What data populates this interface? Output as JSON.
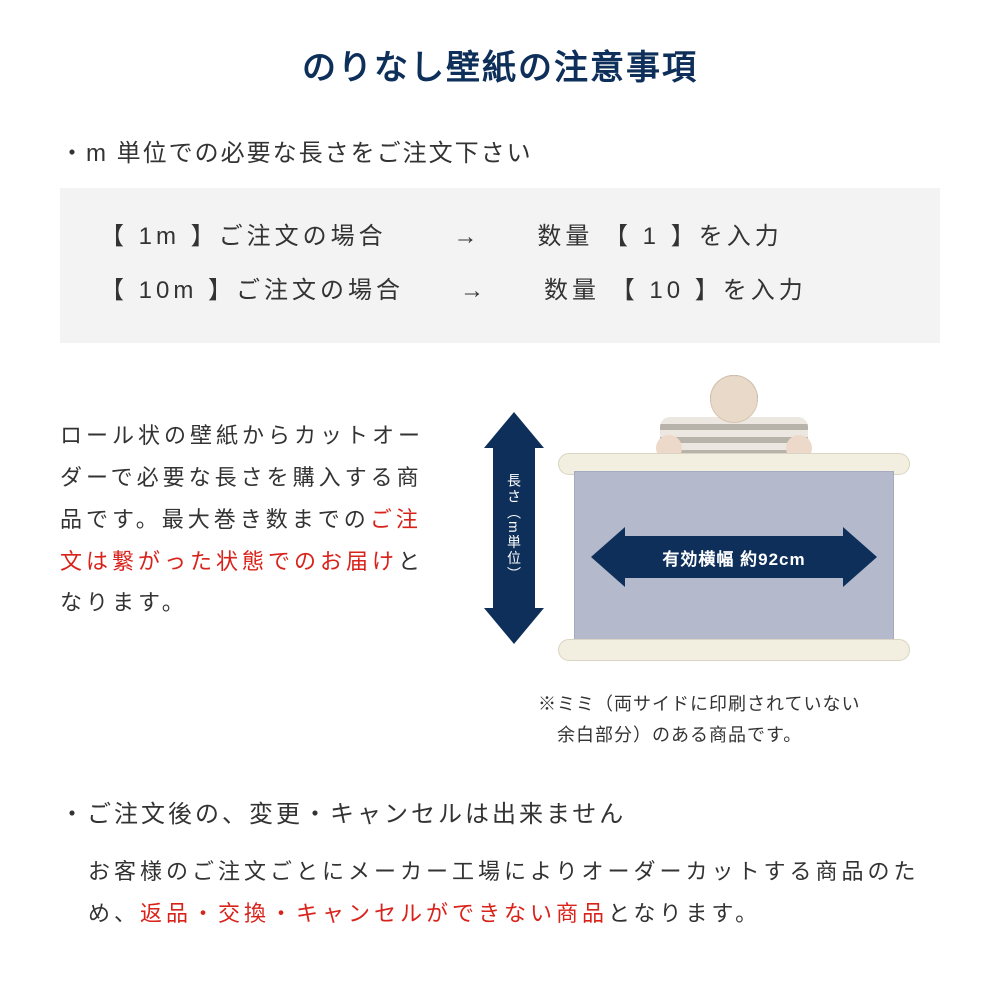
{
  "colors": {
    "navy": "#0d2f5a",
    "red": "#d8221a",
    "box_bg": "#f3f3f3",
    "sheet": "#b4b9cc",
    "roll_bar": "#f2eee0",
    "text": "#333333",
    "bg": "#ffffff"
  },
  "title": "のりなし壁紙の注意事項",
  "bullet1": "・m 単位での必要な長さをご注文下さい",
  "example": {
    "row1": "【  1m  】ご注文の場合　　 →　　数量 【  1  】を入力",
    "row2": "【 10m 】ご注文の場合　　→　　数量 【  10  】を入力"
  },
  "desc": {
    "p1": "ロール状の壁紙からカットオーダーで必要な長さを購入する商品です。最大巻き数までの",
    "p1_red": "ご注文は繋がった状態でのお届け",
    "p1_tail": "となります。"
  },
  "figure": {
    "v_label": "長さ（m単位）",
    "h_label": "有効横幅 約92cm",
    "caption_l1": "※ミミ（両サイドに印刷されていない",
    "caption_l2": "　余白部分）のある商品です。"
  },
  "bullet2": "・ご注文後の、変更・キャンセルは出来ません",
  "desc2": {
    "pre": "お客様のご注文ごとにメーカー工場によりオーダーカットする商品のため、",
    "red": "返品・交換・キャンセルができない商品",
    "post": "となります。"
  }
}
